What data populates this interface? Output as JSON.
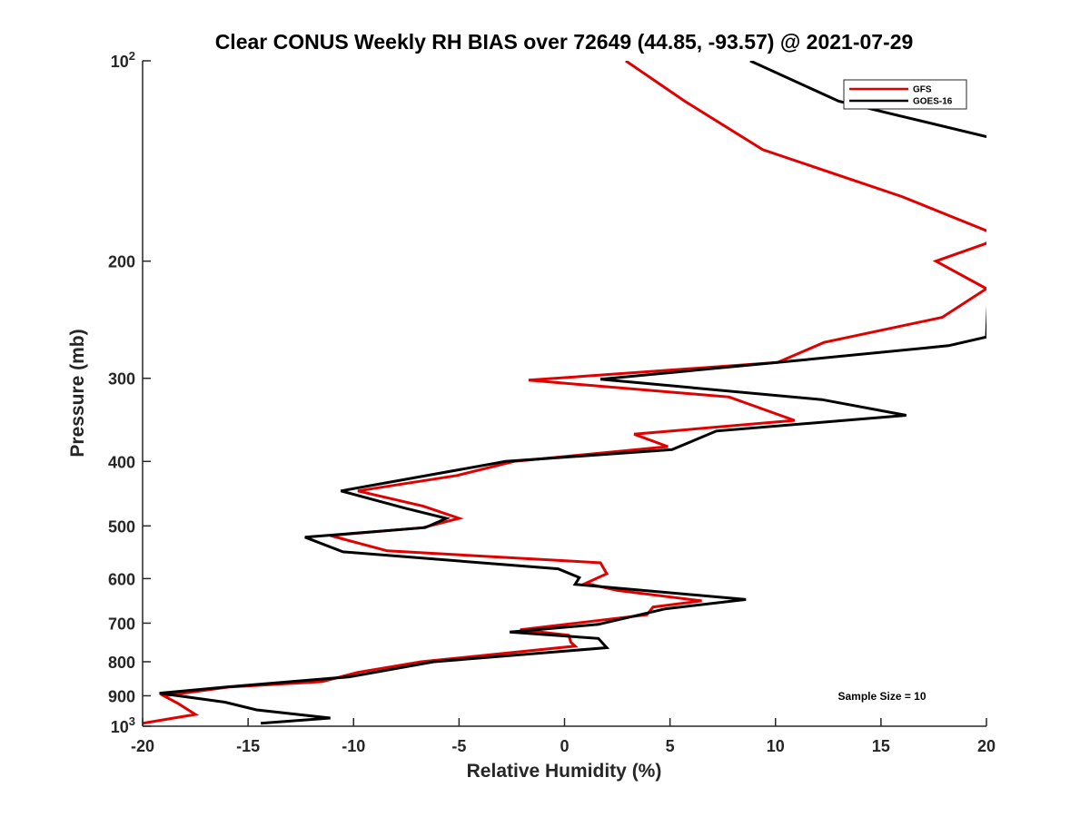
{
  "chart_data": {
    "type": "line",
    "title": "Clear CONUS Weekly RH BIAS over 72649 (44.85, -93.57) @ 2021-07-29",
    "xlabel": "Relative Humidity (%)",
    "ylabel": "Pressure (mb)",
    "xlim": [
      -20,
      20
    ],
    "ylim": [
      100,
      1000
    ],
    "yscale": "log",
    "y_reversed": true,
    "grid": false,
    "legend_position": "top-right",
    "x_ticks": [
      -20,
      -15,
      -10,
      -5,
      0,
      5,
      10,
      15,
      20
    ],
    "y_ticks": [
      {
        "value": 100,
        "base": "10",
        "exp": "2"
      },
      {
        "value": 200,
        "label": "200"
      },
      {
        "value": 300,
        "label": "300"
      },
      {
        "value": 400,
        "label": "400"
      },
      {
        "value": 500,
        "label": "500"
      },
      {
        "value": 600,
        "label": "600"
      },
      {
        "value": 700,
        "label": "700"
      },
      {
        "value": 800,
        "label": "800"
      },
      {
        "value": 900,
        "label": "900"
      },
      {
        "value": 1000,
        "base": "10",
        "exp": "3"
      }
    ],
    "series": [
      {
        "name": "GFS",
        "color": "#e00000",
        "points": [
          [
            2.9,
            100
          ],
          [
            5.7,
            115
          ],
          [
            9.4,
            136
          ],
          [
            16.0,
            160
          ],
          [
            20.0,
            180
          ],
          [
            20.4,
            182
          ],
          [
            20.0,
            188
          ],
          [
            17.6,
            200
          ],
          [
            20.0,
            220
          ],
          [
            17.9,
            243
          ],
          [
            12.3,
            265
          ],
          [
            10.1,
            284
          ],
          [
            -1.7,
            302
          ],
          [
            7.8,
            320
          ],
          [
            10.9,
            347
          ],
          [
            3.3,
            364
          ],
          [
            4.9,
            380
          ],
          [
            -2.4,
            400
          ],
          [
            -5.1,
            420
          ],
          [
            -9.8,
            443
          ],
          [
            -6.7,
            467
          ],
          [
            -5.0,
            487
          ],
          [
            -6.7,
            503
          ],
          [
            -11.1,
            517
          ],
          [
            -8.4,
            545
          ],
          [
            1.7,
            568
          ],
          [
            2.0,
            590
          ],
          [
            1.0,
            610
          ],
          [
            2.5,
            625
          ],
          [
            6.5,
            648
          ],
          [
            4.2,
            662
          ],
          [
            3.9,
            680
          ],
          [
            -2.1,
            716
          ],
          [
            0.2,
            730
          ],
          [
            0.3,
            748
          ],
          [
            0.5,
            758
          ],
          [
            -6.8,
            800
          ],
          [
            -9.8,
            830
          ],
          [
            -11.5,
            857
          ],
          [
            -15.9,
            873
          ],
          [
            -19.0,
            900
          ],
          [
            -18.3,
            925
          ],
          [
            -17.5,
            960
          ],
          [
            -20.0,
            990
          ]
        ]
      },
      {
        "name": "GOES-16",
        "color": "#000000",
        "points": [
          [
            8.8,
            100
          ],
          [
            13.0,
            115
          ],
          [
            20.0,
            130
          ],
          [
            20.4,
            131
          ],
          [
            20.0,
            260
          ],
          [
            18.2,
            268
          ],
          [
            11.1,
            282
          ],
          [
            1.7,
            301
          ],
          [
            12.2,
            323
          ],
          [
            16.2,
            341
          ],
          [
            7.2,
            360
          ],
          [
            5.1,
            384
          ],
          [
            -2.8,
            400
          ],
          [
            -10.6,
            443
          ],
          [
            -7.6,
            470
          ],
          [
            -5.6,
            487
          ],
          [
            -6.6,
            503
          ],
          [
            -12.3,
            520
          ],
          [
            -10.5,
            547
          ],
          [
            -0.3,
            580
          ],
          [
            0.7,
            598
          ],
          [
            0.5,
            612
          ],
          [
            8.6,
            645
          ],
          [
            4.8,
            666
          ],
          [
            1.6,
            703
          ],
          [
            -2.6,
            722
          ],
          [
            1.6,
            738
          ],
          [
            2.0,
            762
          ],
          [
            -6.2,
            800
          ],
          [
            -10.2,
            843
          ],
          [
            -15.5,
            870
          ],
          [
            -19.2,
            892
          ],
          [
            -16.1,
            920
          ],
          [
            -14.6,
            945
          ],
          [
            -11.1,
            972
          ],
          [
            -14.4,
            990
          ]
        ]
      }
    ],
    "annotations": [
      "Sample Size = 10"
    ]
  }
}
